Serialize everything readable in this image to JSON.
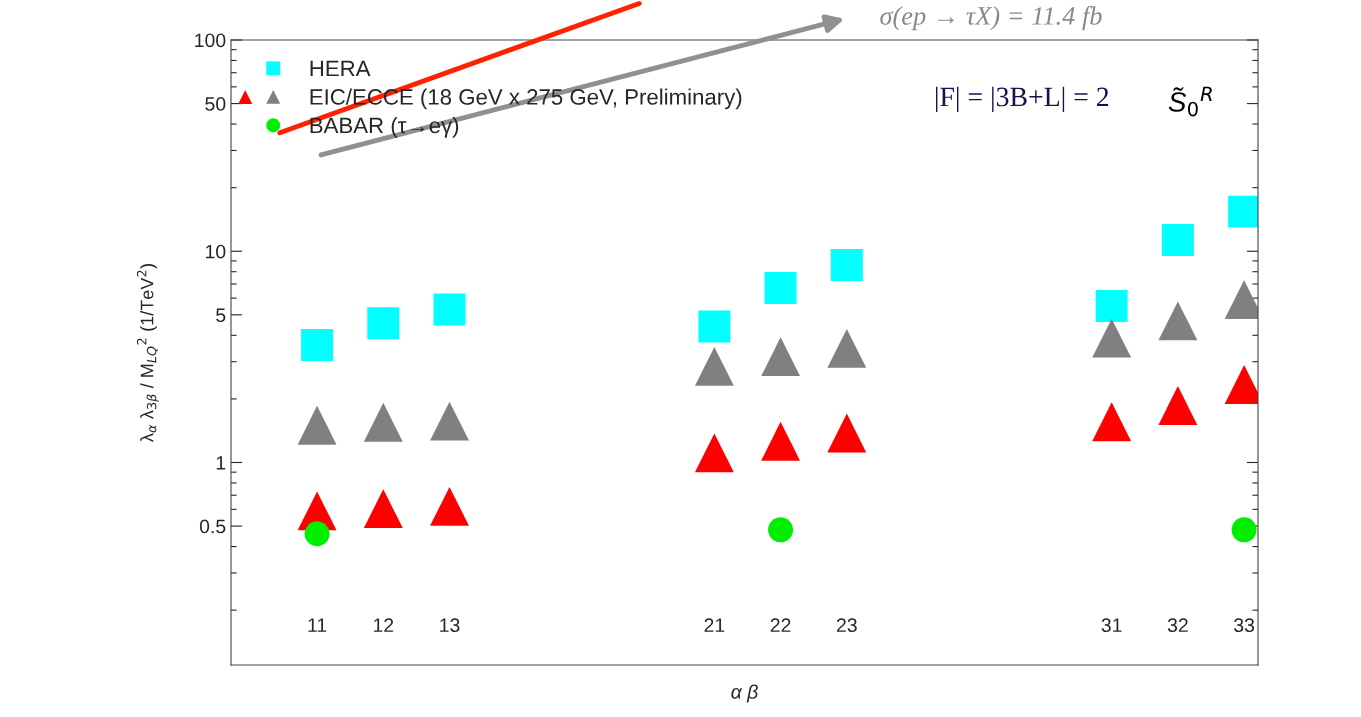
{
  "chart_data": {
    "type": "scatter",
    "categories": [
      "11",
      "12",
      "13",
      null,
      null,
      null,
      "21",
      "22",
      "23",
      null,
      null,
      null,
      "31",
      "32",
      "33"
    ],
    "ylim": [
      0.11,
      100
    ],
    "log": "y",
    "yticks": [
      {
        "value": 0.2,
        "label": null
      },
      {
        "value": 0.3,
        "label": null
      },
      {
        "value": 0.4,
        "label": null
      },
      0.5,
      {
        "value": 0.6,
        "label": null
      },
      {
        "value": 0.7,
        "label": null
      },
      {
        "value": 0.8,
        "label": null
      },
      {
        "value": 0.9,
        "label": null
      },
      1,
      {
        "value": 2,
        "label": null
      },
      {
        "value": 3,
        "label": null
      },
      {
        "value": 4,
        "label": null
      },
      5,
      {
        "value": 6,
        "label": null
      },
      {
        "value": 7,
        "label": null
      },
      {
        "value": 8,
        "label": null
      },
      {
        "value": 9,
        "label": null
      },
      10,
      {
        "value": 20,
        "label": null
      },
      {
        "value": 30,
        "label": null
      },
      {
        "value": 40,
        "label": null
      },
      50,
      {
        "value": 60,
        "label": null
      },
      {
        "value": 70,
        "label": null
      },
      {
        "value": 80,
        "label": null
      },
      {
        "value": 90,
        "label": null
      },
      100
    ],
    "xlabel": "α β",
    "ylabel": "λ$_{α}$ λ$_{3β}$ / M$_{LQ}$$^{2}$ (1/TeV$^{2}$)",
    "legend": "top left",
    "grid": false,
    "series": [
      {
        "name": "HERA",
        "color": "#00ffff",
        "marker": "square",
        "values": [
          3.6,
          4.56,
          5.3,
          null,
          null,
          null,
          4.4,
          6.7,
          8.6,
          null,
          null,
          null,
          5.5,
          11.3,
          15.4
        ]
      },
      {
        "name": "EIC/ECCE (18 GeV x 275 GeV, Preliminary)",
        "color": "#808080",
        "marker": "triangle",
        "values": [
          1.5,
          1.55,
          1.57,
          null,
          null,
          null,
          2.85,
          3.17,
          3.47,
          null,
          null,
          null,
          3.88,
          4.68,
          5.9
        ]
      },
      {
        "color": "#ff0000",
        "marker": "triangle",
        "values": [
          0.59,
          0.605,
          0.62,
          null,
          null,
          null,
          1.11,
          1.26,
          1.38,
          null,
          null,
          null,
          1.56,
          1.86,
          2.34
        ]
      },
      {
        "name": "BABAR (τ→eγ)",
        "color": "#00ee00",
        "marker": "circle",
        "x": [
          "11",
          "22",
          "33"
        ],
        "values": [
          0.46,
          0.48,
          0.48
        ]
      }
    ],
    "annotations": [
      "|F| = |3B+L| = 2",
      "S̃$_{0}$$^{R}$",
      "σ(ep → τX) = 11.4 fb"
    ]
  }
}
